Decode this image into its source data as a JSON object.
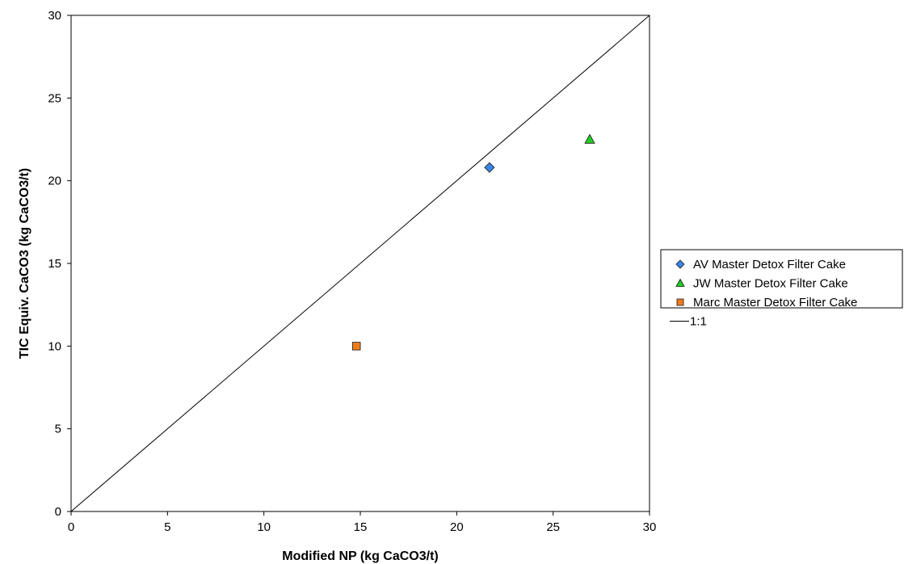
{
  "chart_data": {
    "type": "scatter",
    "title": "",
    "xlabel": "Modified NP (kg CaCO3/t)",
    "ylabel": "TIC Equiv. CaCO3 (kg CaCO3/t)",
    "xlim": [
      0,
      30
    ],
    "ylim": [
      0,
      30
    ],
    "xticks": [
      0,
      5,
      10,
      15,
      20,
      25,
      30
    ],
    "yticks": [
      0,
      5,
      10,
      15,
      20,
      25,
      30
    ],
    "grid": false,
    "legend_position": "right",
    "series": [
      {
        "name": "AV Master Detox Filter Cake",
        "marker": "diamond",
        "color": "#3a86e8",
        "x": [
          21.7
        ],
        "y": [
          20.8
        ]
      },
      {
        "name": "JW Master Detox Filter Cake",
        "marker": "triangle",
        "color": "#22cc22",
        "x": [
          26.9
        ],
        "y": [
          22.5
        ]
      },
      {
        "name": "Marc Master Detox Filter Cake",
        "marker": "square",
        "color": "#f07c1e",
        "x": [
          14.8
        ],
        "y": [
          10.0
        ]
      },
      {
        "name": "1:1",
        "marker": "line",
        "color": "#000000",
        "x": [
          0,
          30
        ],
        "y": [
          0,
          30
        ]
      }
    ]
  }
}
